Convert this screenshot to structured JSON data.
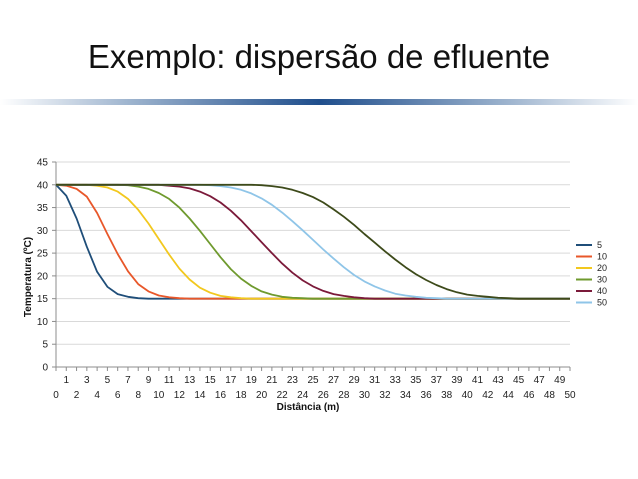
{
  "slide": {
    "title": "Exemplo: dispersão de efluente"
  },
  "chart_data": {
    "type": "line",
    "title": "",
    "xlabel": "Distância (m)",
    "ylabel": "Temperatura (ºC)",
    "xlim": [
      0,
      50
    ],
    "ylim": [
      0,
      45
    ],
    "y_ticks": [
      0,
      5,
      10,
      15,
      20,
      25,
      30,
      35,
      40,
      45
    ],
    "x_ticks": [
      0,
      1,
      2,
      3,
      4,
      5,
      6,
      7,
      8,
      9,
      10,
      11,
      12,
      13,
      14,
      15,
      16,
      17,
      18,
      19,
      20,
      21,
      22,
      23,
      24,
      25,
      26,
      27,
      28,
      29,
      30,
      31,
      32,
      33,
      34,
      35,
      36,
      37,
      38,
      39,
      40,
      41,
      42,
      43,
      44,
      45,
      46,
      47,
      48,
      49,
      50
    ],
    "grid": "horizontal",
    "legend_position": "right",
    "x": [
      0,
      1,
      2,
      3,
      4,
      5,
      6,
      7,
      8,
      9,
      10,
      11,
      12,
      13,
      14,
      15,
      16,
      17,
      18,
      19,
      20,
      21,
      22,
      23,
      24,
      25,
      26,
      27,
      28,
      29,
      30,
      31,
      32,
      33,
      34,
      35,
      36,
      37,
      38,
      39,
      40,
      41,
      42,
      43,
      44,
      45,
      46,
      47,
      48,
      49,
      50
    ],
    "series": [
      {
        "name": "5",
        "color": "#1f4e79",
        "values": [
          40,
          37.6,
          32.6,
          26.4,
          20.9,
          17.6,
          16,
          15.4,
          15.1,
          15,
          15,
          15,
          15,
          15,
          15,
          15,
          15,
          15,
          15,
          15,
          15,
          15,
          15,
          15,
          15,
          15,
          15,
          15,
          15,
          15,
          15,
          15,
          15,
          15,
          15,
          15,
          15,
          15,
          15,
          15,
          15,
          15,
          15,
          15,
          15,
          15,
          15,
          15,
          15,
          15,
          15
        ]
      },
      {
        "name": "10",
        "color": "#e8572a",
        "values": [
          40,
          39.8,
          39.1,
          37.4,
          33.8,
          29.2,
          24.8,
          21,
          18.2,
          16.6,
          15.7,
          15.3,
          15.1,
          15,
          15,
          15,
          15,
          15,
          15,
          15,
          15,
          15,
          15,
          15,
          15,
          15,
          15,
          15,
          15,
          15,
          15,
          15,
          15,
          15,
          15,
          15,
          15,
          15,
          15,
          15,
          15,
          15,
          15,
          15,
          15,
          15,
          15,
          15,
          15,
          15,
          15
        ]
      },
      {
        "name": "20",
        "color": "#f2c81e",
        "values": [
          40,
          40,
          40,
          40,
          39.8,
          39.4,
          38.5,
          36.9,
          34.5,
          31.5,
          28.1,
          24.7,
          21.6,
          19.2,
          17.4,
          16.3,
          15.6,
          15.3,
          15.1,
          15,
          15,
          15,
          15,
          15,
          15,
          15,
          15,
          15,
          15,
          15,
          15,
          15,
          15,
          15,
          15,
          15,
          15,
          15,
          15,
          15,
          15,
          15,
          15,
          15,
          15,
          15,
          15,
          15,
          15,
          15,
          15
        ]
      },
      {
        "name": "30",
        "color": "#6f9a2e",
        "values": [
          40,
          40,
          40,
          40,
          40,
          40,
          40,
          39.9,
          39.6,
          39.1,
          38.2,
          36.9,
          35,
          32.6,
          29.9,
          27,
          24.1,
          21.5,
          19.4,
          17.8,
          16.6,
          15.9,
          15.4,
          15.2,
          15.1,
          15,
          15,
          15,
          15,
          15,
          15,
          15,
          15,
          15,
          15,
          15,
          15,
          15,
          15,
          15,
          15,
          15,
          15,
          15,
          15,
          15,
          15,
          15,
          15,
          15,
          15
        ]
      },
      {
        "name": "40",
        "color": "#7b1a3a",
        "values": [
          40,
          40,
          40,
          40,
          40,
          40,
          40,
          40,
          40,
          40,
          40,
          39.8,
          39.6,
          39.2,
          38.5,
          37.5,
          36.1,
          34.3,
          32.2,
          29.8,
          27.4,
          25,
          22.7,
          20.7,
          19,
          17.7,
          16.7,
          16,
          15.6,
          15.3,
          15.1,
          15,
          15,
          15,
          15,
          15,
          15,
          15,
          15,
          15,
          15,
          15,
          15,
          15,
          15,
          15,
          15,
          15,
          15,
          15,
          15
        ]
      },
      {
        "name": "50",
        "color": "#8fc5e8",
        "values": [
          40,
          40,
          40,
          40,
          40,
          40,
          40,
          40,
          40,
          40,
          40,
          40,
          40,
          40,
          40,
          39.9,
          39.7,
          39.4,
          38.9,
          38.1,
          37,
          35.6,
          33.9,
          32,
          30,
          27.9,
          25.8,
          23.8,
          21.9,
          20.2,
          18.8,
          17.7,
          16.8,
          16.1,
          15.7,
          15.4,
          15.2,
          15.1,
          15,
          15,
          15,
          15,
          15,
          15,
          15,
          15,
          15,
          15,
          15,
          15,
          15
        ]
      },
      {
        "name": "",
        "color": "#3d4a1a",
        "values": [
          40,
          40,
          40,
          40,
          40,
          40,
          40,
          40,
          40,
          40,
          40,
          40,
          40,
          40,
          40,
          40,
          40,
          40,
          40,
          40,
          39.9,
          39.7,
          39.4,
          38.9,
          38.2,
          37.3,
          36.1,
          34.6,
          33,
          31.2,
          29.2,
          27.3,
          25.4,
          23.6,
          21.9,
          20.4,
          19.1,
          18,
          17.1,
          16.4,
          15.9,
          15.6,
          15.4,
          15.2,
          15.1,
          15,
          15,
          15,
          15,
          15,
          15
        ]
      }
    ]
  }
}
